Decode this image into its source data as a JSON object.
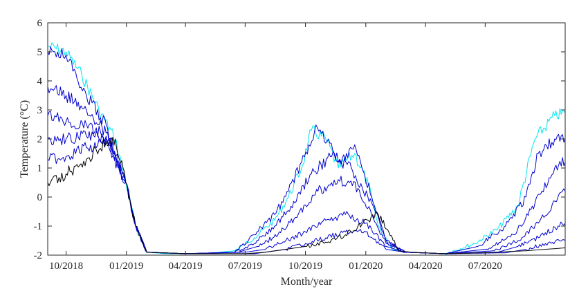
{
  "chart_data": {
    "type": "line",
    "title": "",
    "xlabel": "Month/year",
    "ylabel": "Temperature (°C)",
    "ylim": [
      -2,
      6
    ],
    "xlim": [
      "2018-09-03",
      "2020-10-31"
    ],
    "x_ticks": [
      {
        "date": "2018-10-01",
        "label": "10/2018"
      },
      {
        "date": "2019-01-01",
        "label": "01/2019"
      },
      {
        "date": "2019-04-01",
        "label": "04/2019"
      },
      {
        "date": "2019-07-01",
        "label": "07/2019"
      },
      {
        "date": "2019-10-01",
        "label": "10/2019"
      },
      {
        "date": "2020-01-01",
        "label": "01/2020"
      },
      {
        "date": "2020-04-01",
        "label": "04/2020"
      },
      {
        "date": "2020-07-01",
        "label": "07/2020"
      }
    ],
    "y_ticks": [
      -2,
      -1,
      0,
      1,
      2,
      3,
      4,
      5,
      6
    ],
    "grid": false,
    "legend": "none",
    "colors": {
      "shallow": "#00e5ee",
      "middle": "#0000cd",
      "deep": "#000000",
      "axis": "#262626"
    },
    "series": [
      {
        "color": "#00e5ee",
        "values": [
          [
            "2018-09-03",
            5.2
          ],
          [
            "2018-10-01",
            5.0
          ],
          [
            "2018-10-25",
            4.2
          ],
          [
            "2018-11-20",
            3.0
          ],
          [
            "2018-12-15",
            2.0
          ],
          [
            "2018-12-31",
            0.5
          ],
          [
            "2019-01-15",
            -1.0
          ],
          [
            "2019-02-01",
            -1.9
          ],
          [
            "2019-03-01",
            -1.95
          ],
          [
            "2019-05-01",
            -1.95
          ],
          [
            "2019-06-15",
            -1.85
          ],
          [
            "2019-07-15",
            -1.4
          ],
          [
            "2019-08-15",
            -0.8
          ],
          [
            "2019-09-05",
            0.0
          ],
          [
            "2019-09-25",
            1.0
          ],
          [
            "2019-10-10",
            2.3
          ],
          [
            "2019-11-01",
            2.0
          ],
          [
            "2019-11-20",
            1.0
          ],
          [
            "2019-12-15",
            1.5
          ],
          [
            "2020-01-05",
            0.4
          ],
          [
            "2020-01-20",
            -1.0
          ],
          [
            "2020-02-10",
            -1.8
          ],
          [
            "2020-03-01",
            -1.9
          ],
          [
            "2020-05-01",
            -1.95
          ],
          [
            "2020-06-15",
            -1.6
          ],
          [
            "2020-07-20",
            -1.1
          ],
          [
            "2020-08-20",
            -0.3
          ],
          [
            "2020-09-15",
            2.0
          ],
          [
            "2020-10-15",
            2.8
          ],
          [
            "2020-10-31",
            2.9
          ]
        ]
      },
      {
        "color": "#0000cd",
        "values": [
          [
            "2018-09-03",
            5.0
          ],
          [
            "2018-10-01",
            4.9
          ],
          [
            "2018-11-01",
            3.5
          ],
          [
            "2018-12-01",
            2.5
          ],
          [
            "2018-12-31",
            0.5
          ],
          [
            "2019-01-15",
            -1.0
          ],
          [
            "2019-02-01",
            -1.9
          ],
          [
            "2019-04-01",
            -1.95
          ],
          [
            "2019-06-15",
            -1.9
          ],
          [
            "2019-07-15",
            -1.3
          ],
          [
            "2019-08-15",
            -0.6
          ],
          [
            "2019-09-05",
            0.2
          ],
          [
            "2019-09-25",
            1.2
          ],
          [
            "2019-10-15",
            2.3
          ],
          [
            "2019-11-05",
            2.0
          ],
          [
            "2019-11-20",
            1.2
          ],
          [
            "2019-12-15",
            1.8
          ],
          [
            "2020-01-10",
            0.0
          ],
          [
            "2020-02-01",
            -1.5
          ],
          [
            "2020-03-01",
            -1.9
          ],
          [
            "2020-05-01",
            -1.95
          ],
          [
            "2020-06-20",
            -1.7
          ],
          [
            "2020-08-01",
            -1.0
          ],
          [
            "2020-09-01",
            0.0
          ],
          [
            "2020-09-20",
            1.5
          ],
          [
            "2020-10-15",
            2.0
          ],
          [
            "2020-10-31",
            2.0
          ]
        ]
      },
      {
        "color": "#0000cd",
        "values": [
          [
            "2018-09-03",
            3.8
          ],
          [
            "2018-10-01",
            3.5
          ],
          [
            "2018-11-01",
            3.0
          ],
          [
            "2018-12-01",
            2.2
          ],
          [
            "2018-12-31",
            0.5
          ],
          [
            "2019-01-15",
            -1.0
          ],
          [
            "2019-02-01",
            -1.9
          ],
          [
            "2019-04-01",
            -1.95
          ],
          [
            "2019-06-15",
            -1.9
          ],
          [
            "2019-07-15",
            -1.6
          ],
          [
            "2019-08-15",
            -1.0
          ],
          [
            "2019-09-15",
            -0.2
          ],
          [
            "2019-10-10",
            0.8
          ],
          [
            "2019-11-10",
            1.4
          ],
          [
            "2019-12-10",
            1.0
          ],
          [
            "2020-01-10",
            -0.2
          ],
          [
            "2020-02-01",
            -1.5
          ],
          [
            "2020-03-01",
            -1.9
          ],
          [
            "2020-05-01",
            -1.95
          ],
          [
            "2020-07-01",
            -1.8
          ],
          [
            "2020-08-15",
            -1.3
          ],
          [
            "2020-09-15",
            -0.2
          ],
          [
            "2020-10-15",
            1.0
          ],
          [
            "2020-10-31",
            1.2
          ]
        ]
      },
      {
        "color": "#0000cd",
        "values": [
          [
            "2018-09-03",
            2.8
          ],
          [
            "2018-10-01",
            2.6
          ],
          [
            "2018-11-01",
            2.5
          ],
          [
            "2018-12-01",
            2.1
          ],
          [
            "2018-12-31",
            0.5
          ],
          [
            "2019-01-15",
            -1.0
          ],
          [
            "2019-02-01",
            -1.9
          ],
          [
            "2019-04-01",
            -1.95
          ],
          [
            "2019-06-20",
            -1.9
          ],
          [
            "2019-07-20",
            -1.7
          ],
          [
            "2019-08-20",
            -1.3
          ],
          [
            "2019-09-20",
            -0.6
          ],
          [
            "2019-10-20",
            0.2
          ],
          [
            "2019-11-20",
            0.6
          ],
          [
            "2019-12-20",
            0.3
          ],
          [
            "2020-01-10",
            -0.6
          ],
          [
            "2020-02-01",
            -1.6
          ],
          [
            "2020-03-01",
            -1.9
          ],
          [
            "2020-05-01",
            -1.95
          ],
          [
            "2020-07-15",
            -1.85
          ],
          [
            "2020-08-20",
            -1.5
          ],
          [
            "2020-09-20",
            -0.9
          ],
          [
            "2020-10-20",
            0.0
          ],
          [
            "2020-10-31",
            0.2
          ]
        ]
      },
      {
        "color": "#0000cd",
        "values": [
          [
            "2018-09-03",
            2.0
          ],
          [
            "2018-10-01",
            2.0
          ],
          [
            "2018-11-01",
            2.1
          ],
          [
            "2018-12-01",
            2.0
          ],
          [
            "2018-12-31",
            0.5
          ],
          [
            "2019-01-15",
            -1.0
          ],
          [
            "2019-02-01",
            -1.9
          ],
          [
            "2019-04-01",
            -1.95
          ],
          [
            "2019-07-01",
            -1.9
          ],
          [
            "2019-08-01",
            -1.8
          ],
          [
            "2019-09-01",
            -1.5
          ],
          [
            "2019-10-01",
            -1.2
          ],
          [
            "2019-11-01",
            -0.8
          ],
          [
            "2019-12-01",
            -0.6
          ],
          [
            "2020-01-01",
            -0.9
          ],
          [
            "2020-02-01",
            -1.7
          ],
          [
            "2020-03-01",
            -1.9
          ],
          [
            "2020-05-01",
            -1.95
          ],
          [
            "2020-07-20",
            -1.9
          ],
          [
            "2020-08-20",
            -1.7
          ],
          [
            "2020-09-20",
            -1.4
          ],
          [
            "2020-10-20",
            -1.0
          ],
          [
            "2020-10-31",
            -0.9
          ]
        ]
      },
      {
        "color": "#0000cd",
        "values": [
          [
            "2018-09-03",
            1.3
          ],
          [
            "2018-10-01",
            1.4
          ],
          [
            "2018-11-01",
            1.7
          ],
          [
            "2018-12-01",
            1.9
          ],
          [
            "2018-12-31",
            0.5
          ],
          [
            "2019-01-15",
            -1.0
          ],
          [
            "2019-02-01",
            -1.9
          ],
          [
            "2019-04-01",
            -1.95
          ],
          [
            "2019-07-15",
            -1.95
          ],
          [
            "2019-09-01",
            -1.8
          ],
          [
            "2019-10-01",
            -1.6
          ],
          [
            "2019-11-01",
            -1.4
          ],
          [
            "2019-12-01",
            -1.2
          ],
          [
            "2020-01-01",
            -1.2
          ],
          [
            "2020-02-01",
            -1.8
          ],
          [
            "2020-03-01",
            -1.9
          ],
          [
            "2020-05-01",
            -1.95
          ],
          [
            "2020-08-01",
            -1.92
          ],
          [
            "2020-09-01",
            -1.8
          ],
          [
            "2020-10-01",
            -1.6
          ],
          [
            "2020-10-31",
            -1.5
          ]
        ]
      },
      {
        "color": "#000000",
        "values": [
          [
            "2018-09-03",
            0.5
          ],
          [
            "2018-10-01",
            0.8
          ],
          [
            "2018-11-01",
            1.3
          ],
          [
            "2018-12-01",
            1.9
          ],
          [
            "2018-12-15",
            2.0
          ],
          [
            "2018-12-31",
            0.5
          ],
          [
            "2019-01-15",
            -1.0
          ],
          [
            "2019-02-01",
            -1.9
          ],
          [
            "2019-04-01",
            -1.95
          ],
          [
            "2019-07-01",
            -1.95
          ],
          [
            "2019-08-01",
            -1.9
          ],
          [
            "2019-09-01",
            -1.8
          ],
          [
            "2019-10-01",
            -1.7
          ],
          [
            "2019-11-01",
            -1.55
          ],
          [
            "2019-12-01",
            -1.3
          ],
          [
            "2019-12-20",
            -1.0
          ],
          [
            "2020-01-05",
            -0.8
          ],
          [
            "2020-01-20",
            -0.6
          ],
          [
            "2020-02-05",
            -1.2
          ],
          [
            "2020-02-20",
            -1.85
          ],
          [
            "2020-03-10",
            -1.9
          ],
          [
            "2020-05-01",
            -1.95
          ],
          [
            "2020-07-01",
            -1.92
          ],
          [
            "2020-09-01",
            -1.85
          ],
          [
            "2020-10-31",
            -1.75
          ]
        ]
      }
    ]
  }
}
